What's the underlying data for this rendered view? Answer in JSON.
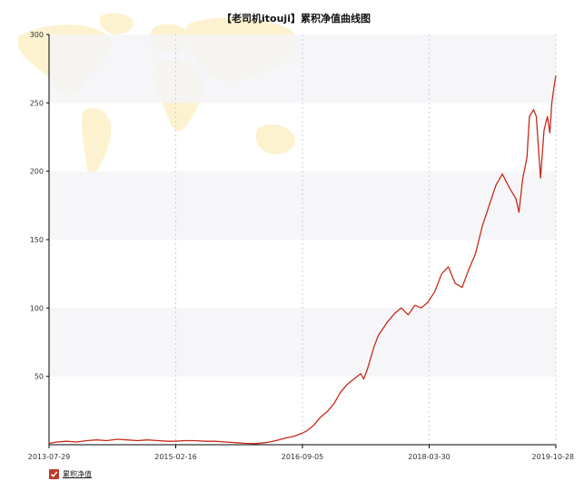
{
  "chart_data": {
    "type": "line",
    "title": "【老司机itouji】累积净值曲线图",
    "xlabel": "",
    "ylabel": "",
    "x_tick_labels": [
      "2013-07-29",
      "2015-02-16",
      "2016-09-05",
      "2018-03-30",
      "2019-10-28"
    ],
    "y_ticks": [
      50,
      100,
      150,
      200,
      250,
      300
    ],
    "ylim": [
      0,
      300
    ],
    "xlim": [
      "2013-07-29",
      "2019-10-28"
    ],
    "grid": "vertical dotted lines at x ticks, alternating horizontal bands",
    "legend_position": "bottom-left",
    "colors": {
      "series": "#c8291b",
      "legend_check": "#c0392b"
    },
    "series": [
      {
        "name": "累积净值",
        "points": [
          [
            "2013-07-29",
            1
          ],
          [
            "2013-09-01",
            2
          ],
          [
            "2013-10-15",
            2.5
          ],
          [
            "2013-12-01",
            2
          ],
          [
            "2014-01-15",
            3
          ],
          [
            "2014-03-01",
            3.5
          ],
          [
            "2014-04-15",
            3
          ],
          [
            "2014-06-01",
            4
          ],
          [
            "2014-07-15",
            3.5
          ],
          [
            "2014-09-01",
            3
          ],
          [
            "2014-10-15",
            3.5
          ],
          [
            "2014-12-01",
            3
          ],
          [
            "2015-01-15",
            2.5
          ],
          [
            "2015-02-16",
            2.5
          ],
          [
            "2015-04-01",
            3
          ],
          [
            "2015-05-15",
            3
          ],
          [
            "2015-07-01",
            2.5
          ],
          [
            "2015-08-15",
            2.5
          ],
          [
            "2015-10-01",
            2
          ],
          [
            "2015-11-15",
            1.5
          ],
          [
            "2016-01-01",
            1
          ],
          [
            "2016-02-15",
            0.8
          ],
          [
            "2016-04-01",
            1.5
          ],
          [
            "2016-05-15",
            3
          ],
          [
            "2016-07-01",
            5
          ],
          [
            "2016-08-01",
            6
          ],
          [
            "2016-09-05",
            8
          ],
          [
            "2016-10-01",
            10
          ],
          [
            "2016-11-01",
            14
          ],
          [
            "2016-12-01",
            20
          ],
          [
            "2017-01-01",
            24
          ],
          [
            "2017-02-01",
            30
          ],
          [
            "2017-03-01",
            38
          ],
          [
            "2017-04-01",
            44
          ],
          [
            "2017-05-01",
            48
          ],
          [
            "2017-06-01",
            52
          ],
          [
            "2017-06-15",
            48
          ],
          [
            "2017-07-01",
            55
          ],
          [
            "2017-08-01",
            72
          ],
          [
            "2017-08-20",
            80
          ],
          [
            "2017-09-10",
            85
          ],
          [
            "2017-10-01",
            90
          ],
          [
            "2017-11-01",
            96
          ],
          [
            "2017-12-01",
            100
          ],
          [
            "2018-01-01",
            95
          ],
          [
            "2018-02-01",
            102
          ],
          [
            "2018-03-01",
            100
          ],
          [
            "2018-03-30",
            104
          ],
          [
            "2018-05-01",
            112
          ],
          [
            "2018-06-01",
            125
          ],
          [
            "2018-07-01",
            130
          ],
          [
            "2018-08-01",
            118
          ],
          [
            "2018-09-01",
            115
          ],
          [
            "2018-10-01",
            128
          ],
          [
            "2018-11-01",
            140
          ],
          [
            "2018-12-01",
            160
          ],
          [
            "2019-01-01",
            175
          ],
          [
            "2019-02-01",
            190
          ],
          [
            "2019-03-01",
            198
          ],
          [
            "2019-04-01",
            188
          ],
          [
            "2019-05-01",
            180
          ],
          [
            "2019-05-15",
            170
          ],
          [
            "2019-06-01",
            195
          ],
          [
            "2019-06-20",
            210
          ],
          [
            "2019-07-01",
            240
          ],
          [
            "2019-07-20",
            245
          ],
          [
            "2019-08-01",
            240
          ],
          [
            "2019-08-20",
            195
          ],
          [
            "2019-09-05",
            230
          ],
          [
            "2019-09-20",
            240
          ],
          [
            "2019-10-01",
            228
          ],
          [
            "2019-10-10",
            250
          ],
          [
            "2019-10-20",
            262
          ],
          [
            "2019-10-28",
            270
          ]
        ]
      }
    ]
  },
  "legend": {
    "label": "累积净值"
  }
}
